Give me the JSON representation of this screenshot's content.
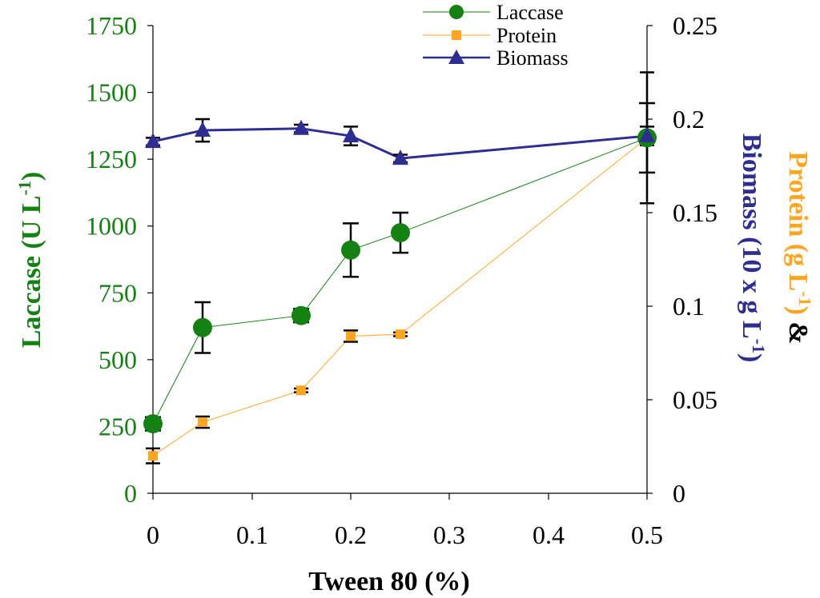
{
  "colors": {
    "laccase": "#138213",
    "protein": "#FFA520",
    "biomass": "#2E2E92",
    "axis": "#000000"
  },
  "chart_data": {
    "type": "line",
    "x_scale": "categorical-positional",
    "xlabel": "Tween 80 (%)",
    "x_ticks": [
      "0",
      "0.1",
      "0.2",
      "0.3",
      "0.4",
      "0.5"
    ],
    "x_tick_values": [
      0,
      0.1,
      0.2,
      0.3,
      0.4,
      0.5
    ],
    "y_left": {
      "label_main": "Laccase (U L",
      "label_sup": "-1",
      "label_close": ")",
      "ylim": [
        0,
        1750
      ],
      "ticks": [
        "0",
        "250",
        "500",
        "750",
        "1000",
        "1250",
        "1500",
        "1750"
      ],
      "tick_values": [
        0,
        250,
        500,
        750,
        1000,
        1250,
        1500,
        1750
      ]
    },
    "y_right": {
      "label_protein": "Protein (g L",
      "label_protein_sup": "-1",
      "label_protein_close": ")",
      "label_amp": " & ",
      "label_biomass": "Biomass (10 x g L",
      "label_biomass_sup": "-1",
      "label_biomass_close": ")",
      "ylim": [
        0,
        0.25
      ],
      "ticks": [
        "0",
        "0.05",
        "0.1",
        "0.15",
        "0.2",
        "0.25"
      ],
      "tick_values": [
        0,
        0.05,
        0.1,
        0.15,
        0.2,
        0.25
      ]
    },
    "series": [
      {
        "name": "Laccase",
        "axis": "left",
        "marker": "circle",
        "x": [
          0,
          0.05,
          0.15,
          0.2,
          0.25,
          0.5
        ],
        "values": [
          260,
          620,
          665,
          910,
          975,
          1330
        ],
        "errors": [
          25,
          95,
          25,
          100,
          75,
          130
        ]
      },
      {
        "name": "Protein",
        "axis": "right",
        "marker": "square",
        "x": [
          0,
          0.05,
          0.15,
          0.2,
          0.25,
          0.5
        ],
        "values": [
          0.02,
          0.038,
          0.055,
          0.084,
          0.085,
          0.19
        ],
        "errors": [
          0.004,
          0.003,
          0.001,
          0.003,
          0.001,
          0.035
        ]
      },
      {
        "name": "Biomass",
        "axis": "right",
        "marker": "triangle",
        "x": [
          0,
          0.05,
          0.15,
          0.2,
          0.25,
          0.5
        ],
        "values": [
          0.188,
          0.194,
          0.195,
          0.191,
          0.179,
          0.191
        ],
        "errors": [
          0.002,
          0.006,
          0.002,
          0.005,
          0.002,
          0.005
        ]
      }
    ],
    "legend": [
      "Laccase",
      "Protein",
      "Biomass"
    ],
    "legend_position": "top-center"
  }
}
